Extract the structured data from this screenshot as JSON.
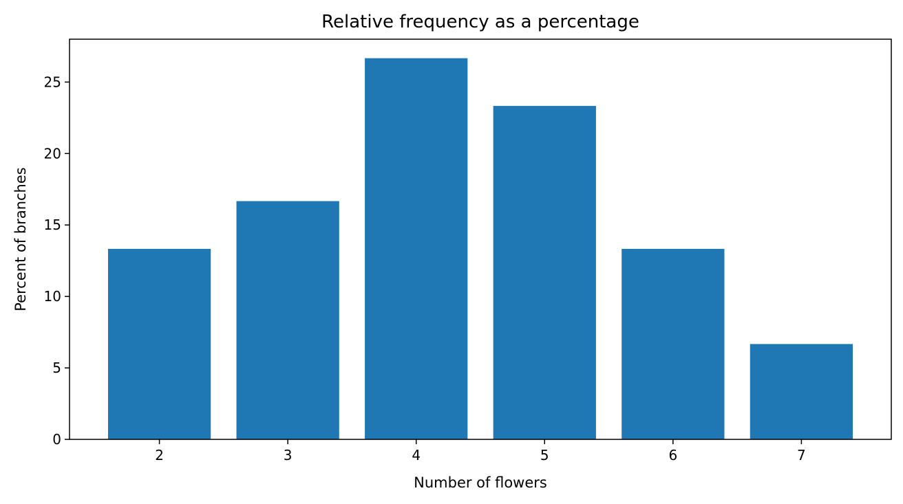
{
  "chart_data": {
    "type": "bar",
    "title": "Relative frequency as a percentage",
    "xlabel": "Number of flowers",
    "ylabel": "Percent of branches",
    "categories": [
      "2",
      "3",
      "4",
      "5",
      "6",
      "7"
    ],
    "x": [
      2,
      3,
      4,
      5,
      6,
      7
    ],
    "values": [
      13.33,
      16.67,
      26.67,
      23.33,
      13.33,
      6.67
    ],
    "xlim": [
      1.3,
      7.7
    ],
    "ylim": [
      0,
      28
    ],
    "yticks": [
      0,
      5,
      10,
      15,
      20,
      25
    ],
    "bar_width": 0.8,
    "bar_color": "#1f77b4",
    "grid": false,
    "legend": "none"
  }
}
